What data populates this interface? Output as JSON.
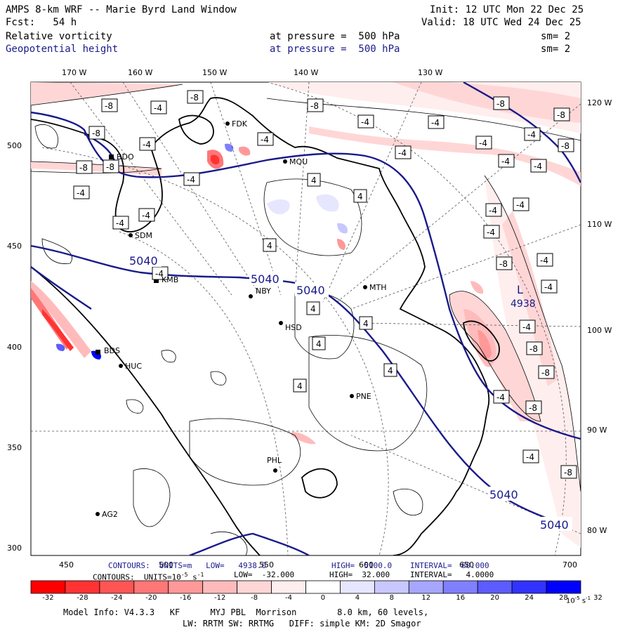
{
  "header": {
    "title": "AMPS 8-km WRF -- Marie Byrd Land Window",
    "init": "Init: 12 UTC Mon 22 Dec 25",
    "fcst": "Fcst:   54 h",
    "valid": "Valid: 18 UTC Wed 24 Dec 25",
    "field1": "Relative vorticity",
    "field1_level": "at pressure =  500 hPa",
    "field1_sm": "sm= 2",
    "field2": "Geopotential height",
    "field2_level": "at pressure =  500 hPa",
    "field2_sm": "sm= 2"
  },
  "axes": {
    "top_lon": [
      "170 W",
      "160 W",
      "150 W",
      "140 W",
      "130 W"
    ],
    "right_lon": [
      "120 W",
      "110 W",
      "100 W",
      "90 W",
      "80 W"
    ],
    "left_ticks": [
      "500",
      "450",
      "400",
      "350",
      "300"
    ],
    "bottom_ticks": [
      "450",
      "500",
      "550",
      "600",
      "650",
      "700"
    ]
  },
  "stations": [
    {
      "id": "FDK"
    },
    {
      "id": "BDO"
    },
    {
      "id": "MQU"
    },
    {
      "id": "SDM"
    },
    {
      "id": "KMB"
    },
    {
      "id": "NBY"
    },
    {
      "id": "MTH"
    },
    {
      "id": "HSD"
    },
    {
      "id": "BDS"
    },
    {
      "id": "HUC"
    },
    {
      "id": "PNE"
    },
    {
      "id": "PHL"
    },
    {
      "id": "AG2"
    }
  ],
  "contour_labels": {
    "height": [
      "5040",
      "5040",
      "5040",
      "5040",
      "5040"
    ],
    "low_value": "4938",
    "low_marker": "L"
  },
  "footer": {
    "contours_height": "CONTOURS:  UNITS=m   LOW=   4938.0",
    "high_height": "HIGH=  5100.0",
    "interval_height": "INTERVAL=  60.000",
    "contours_vort": "CONTOURS:  UNITS=10",
    "contours_vort_exp": "-5",
    "contours_vort_unit": " s",
    "contours_vort_unit_exp": "-1",
    "low_vort": "LOW=  -32.000",
    "high_vort": "HIGH=  32.000",
    "interval_vort": "INTERVAL=   4.0000",
    "model_info": "Model Info: V4.3.3   KF      MYJ PBL  Morrison        8.0 km, 60 levels,",
    "model_info2": "LW: RRTM SW: RRTMG   DIFF: simple KM: 2D Smagor"
  },
  "colorbar": {
    "labels": [
      "-32",
      "-28",
      "-24",
      "-20",
      "-16",
      "-12",
      "-8",
      "-4",
      "0",
      "4",
      "8",
      "12",
      "16",
      "20",
      "24",
      "28",
      "32"
    ],
    "unit": "10",
    "unit_exp": "-5",
    "unit_tail": " s",
    "unit_tail_exp": "-1",
    "colors": [
      "#ff0000",
      "#ff3333",
      "#ff5555",
      "#ff7777",
      "#ff9999",
      "#ffbbbb",
      "#ffd6d6",
      "#ffeeee",
      "#ffffff",
      "#ffffff",
      "#e6e6ff",
      "#c8c8ff",
      "#a6a6ff",
      "#8080ff",
      "#5c5cff",
      "#3333ff",
      "#0000ff"
    ]
  }
}
